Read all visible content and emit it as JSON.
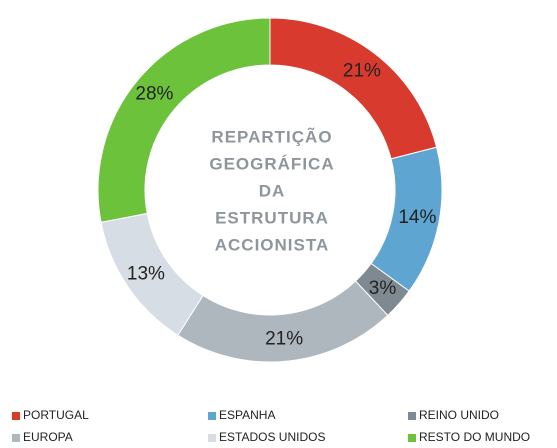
{
  "chart_data": {
    "type": "donut",
    "title": [
      "REPARTIÇÃO",
      "GEOGRÁFICA",
      "DA",
      "ESTRUTURA",
      "ACCIONISTA"
    ],
    "categories": [
      "PORTUGAL",
      "ESPANHA",
      "REINO UNIDO",
      "EUROPA",
      "ESTADOS UNIDOS",
      "RESTO DO MUNDO"
    ],
    "values": [
      21,
      14,
      3,
      21,
      13,
      28
    ],
    "value_labels": [
      "21%",
      "14%",
      "3%",
      "21%",
      "13%",
      "28%"
    ],
    "colors": [
      "#d93a2e",
      "#5ea5d2",
      "#7f8992",
      "#aeb6be",
      "#d6dde4",
      "#6cc23a"
    ]
  }
}
